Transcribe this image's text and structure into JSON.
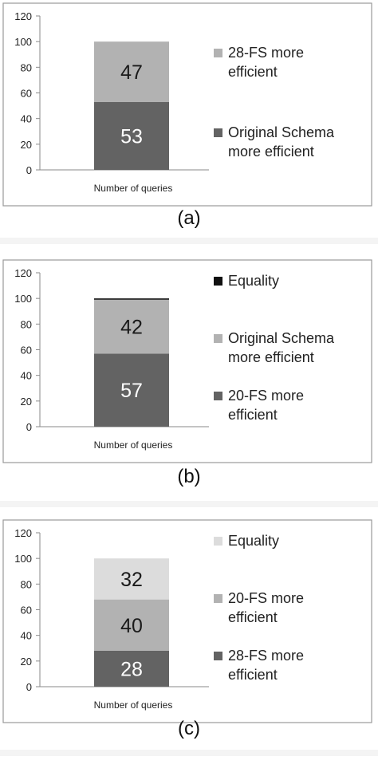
{
  "chart_data": [
    {
      "type": "bar",
      "stacked": true,
      "categories": [
        "Number of queries"
      ],
      "series": [
        {
          "name": "28-FS more efficient",
          "values": [
            53
          ],
          "color": "#636363"
        },
        {
          "name": "Original Schema more efficient",
          "values": [
            47
          ],
          "color": "#b2b2b2"
        }
      ],
      "data_labels": [
        "53",
        "47"
      ],
      "ylim": [
        0,
        120
      ],
      "yticks": [
        "0",
        "20",
        "40",
        "60",
        "80",
        "100",
        "120"
      ],
      "legend_lines": [
        [
          "Original Schema",
          "more efficient"
        ],
        [
          "28-FS more",
          "efficient"
        ]
      ],
      "legend_order": [
        1,
        0
      ],
      "legend_placement": "right",
      "grid": false,
      "panel_label": "(a)"
    },
    {
      "type": "bar",
      "stacked": true,
      "categories": [
        "Number of queries"
      ],
      "series": [
        {
          "name": "20-FS more efficient",
          "values": [
            57
          ],
          "color": "#636363"
        },
        {
          "name": "Original Schema more efficient",
          "values": [
            42
          ],
          "color": "#b2b2b2"
        },
        {
          "name": "Equality",
          "values": [
            1
          ],
          "color": "#111111"
        }
      ],
      "data_labels": [
        "57",
        "42",
        ""
      ],
      "ylim": [
        0,
        120
      ],
      "yticks": [
        "0",
        "20",
        "40",
        "60",
        "80",
        "100",
        "120"
      ],
      "legend_lines": [
        [
          "20-FS more",
          "efficient"
        ],
        [
          "Original Schema",
          "more efficient"
        ],
        [
          "Equality"
        ]
      ],
      "legend_order": [
        2,
        1,
        0
      ],
      "legend_placement": "right",
      "grid": false,
      "panel_label": "(b)"
    },
    {
      "type": "bar",
      "stacked": true,
      "categories": [
        "Number of queries"
      ],
      "series": [
        {
          "name": "28-FS more efficient",
          "values": [
            28
          ],
          "color": "#636363"
        },
        {
          "name": "20-FS more efficient",
          "values": [
            40
          ],
          "color": "#b2b2b2"
        },
        {
          "name": "Equality",
          "values": [
            32
          ],
          "color": "#dcdcdc"
        }
      ],
      "data_labels": [
        "28",
        "40",
        "32"
      ],
      "ylim": [
        0,
        120
      ],
      "yticks": [
        "0",
        "20",
        "40",
        "60",
        "80",
        "100",
        "120"
      ],
      "legend_lines": [
        [
          "28-FS  more",
          "efficient"
        ],
        [
          "20-FS  more",
          "efficient"
        ],
        [
          "Equality"
        ]
      ],
      "legend_order": [
        2,
        1,
        0
      ],
      "legend_placement": "right",
      "grid": false,
      "panel_label": "(c)"
    }
  ]
}
